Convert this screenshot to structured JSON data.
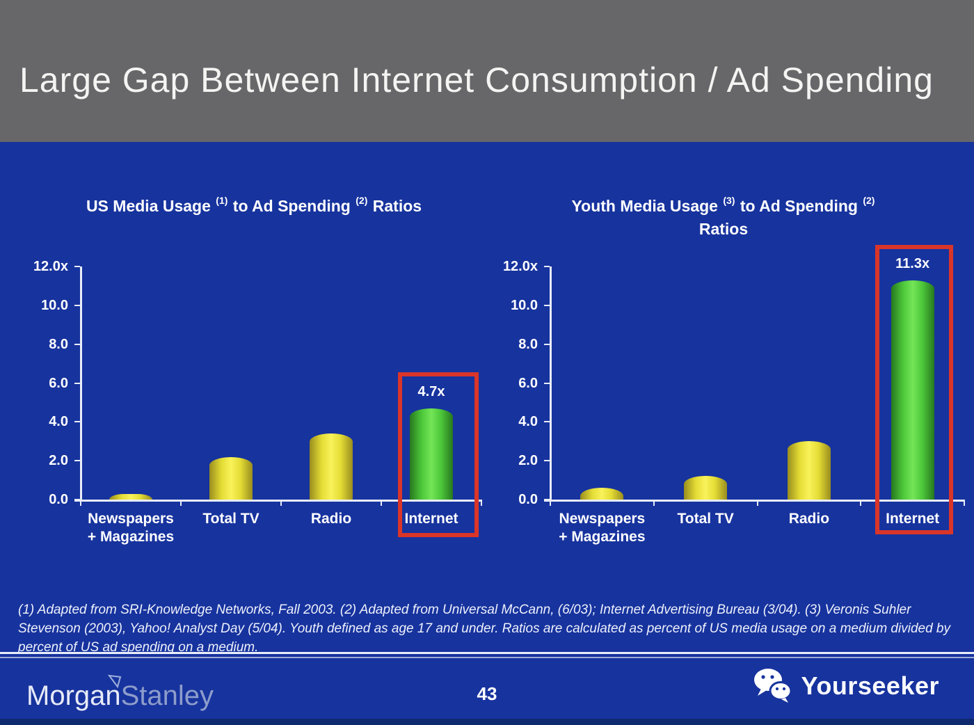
{
  "slide": {
    "title": "Large Gap Between Internet Consumption / Ad Spending",
    "footnote": "(1) Adapted from SRI-Knowledge Networks, Fall 2003.  (2) Adapted from Universal McCann, (6/03); Internet Advertising Bureau (3/04). (3) Veronis Suhler Stevenson (2003), Yahoo! Analyst Day (5/04).  Youth defined as age 17 and under.  Ratios are calculated as percent of US media usage on a medium divided by percent of US ad spending on a medium."
  },
  "footer": {
    "logo_morgan": "Morgan",
    "logo_stanley": "Stanley",
    "page_number": "43",
    "watermark_text": "Yourseeker"
  },
  "colors": {
    "header_bg": "#67676a",
    "body_bg": "#17339e",
    "bar_yellow": "#f3ec4a",
    "bar_green": "#5cd343",
    "highlight_box_red": "#da3529",
    "axis_white": "#e9edf8",
    "bottom_strip": "#0e296e"
  },
  "chart_data": [
    {
      "type": "bar",
      "title": "US Media Usage (1) to Ad Spending (2) Ratios",
      "title_segments": [
        {
          "t": "US Media Usage "
        },
        {
          "sup": "(1)"
        },
        {
          "t": " to Ad Spending "
        },
        {
          "sup": "(2)"
        },
        {
          "t": " Ratios"
        }
      ],
      "categories": [
        {
          "slug": "newspapers-magazines",
          "label_lines": [
            "Newspapers",
            "+ Magazines"
          ]
        },
        {
          "slug": "total-tv",
          "label_lines": [
            "Total TV"
          ]
        },
        {
          "slug": "radio",
          "label_lines": [
            "Radio"
          ]
        },
        {
          "slug": "internet",
          "label_lines": [
            "Internet"
          ]
        }
      ],
      "values": [
        0.3,
        2.2,
        3.4,
        4.7
      ],
      "ylim": [
        0,
        12
      ],
      "y_tick_labels": [
        "12.0x",
        "10.0",
        "8.0",
        "6.0",
        "4.0",
        "2.0",
        "0.0"
      ],
      "grid": false,
      "legend": false,
      "highlight_index": 3,
      "highlight_label": "4.7x"
    },
    {
      "type": "bar",
      "title": "Youth Media Usage (3) to Ad Spending (2) Ratios",
      "title_segments": [
        {
          "t": "Youth Media Usage "
        },
        {
          "sup": "(3)"
        },
        {
          "t": " to Ad Spending "
        },
        {
          "sup": "(2)"
        },
        {
          "t": " Ratios"
        }
      ],
      "categories": [
        {
          "slug": "newspapers-magazines",
          "label_lines": [
            "Newspapers",
            "+ Magazines"
          ]
        },
        {
          "slug": "total-tv",
          "label_lines": [
            "Total TV"
          ]
        },
        {
          "slug": "radio",
          "label_lines": [
            "Radio"
          ]
        },
        {
          "slug": "internet",
          "label_lines": [
            "Internet"
          ]
        }
      ],
      "values": [
        0.6,
        1.2,
        3.0,
        11.3
      ],
      "ylim": [
        0,
        12
      ],
      "y_tick_labels": [
        "12.0x",
        "10.0",
        "8.0",
        "6.0",
        "4.0",
        "2.0",
        "0.0"
      ],
      "grid": false,
      "legend": false,
      "highlight_index": 3,
      "highlight_label": "11.3x"
    }
  ]
}
